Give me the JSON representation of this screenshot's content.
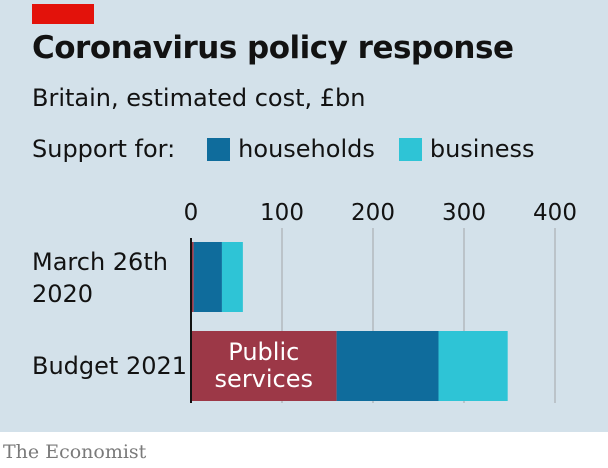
{
  "header": {
    "title": "Coronavirus policy response",
    "subtitle": "Britain, estimated cost, £bn"
  },
  "legend": {
    "prefix": "Support for:",
    "items": [
      {
        "label": "households",
        "color": "#0f6c9c"
      },
      {
        "label": "business",
        "color": "#2ec4d6"
      }
    ]
  },
  "footer": {
    "source": "The Economist"
  },
  "colors": {
    "panel_bg": "#d3e1ea",
    "accent": "#e3120b",
    "public_services": "#9c3847",
    "households": "#0f6c9c",
    "business": "#2ec4d6",
    "gridline": "#b3b9be"
  },
  "chart_data": {
    "type": "bar",
    "orientation": "horizontal",
    "stacked": true,
    "categories": [
      [
        "March 26th",
        "2020"
      ],
      [
        "Budget 2021"
      ]
    ],
    "series": [
      {
        "name": "Public services",
        "color": "#9c3847",
        "values": [
          3,
          160
        ]
      },
      {
        "name": "households",
        "color": "#0f6c9c",
        "values": [
          31,
          112
        ]
      },
      {
        "name": "business",
        "color": "#2ec4d6",
        "values": [
          23,
          76
        ]
      }
    ],
    "annotations": [
      {
        "category": 1,
        "series": 0,
        "lines": [
          "Public",
          "services"
        ]
      }
    ],
    "xlim": [
      0,
      400
    ],
    "xticks": [
      0,
      100,
      200,
      300,
      400
    ],
    "xaxis_position": "top",
    "grid": true
  }
}
